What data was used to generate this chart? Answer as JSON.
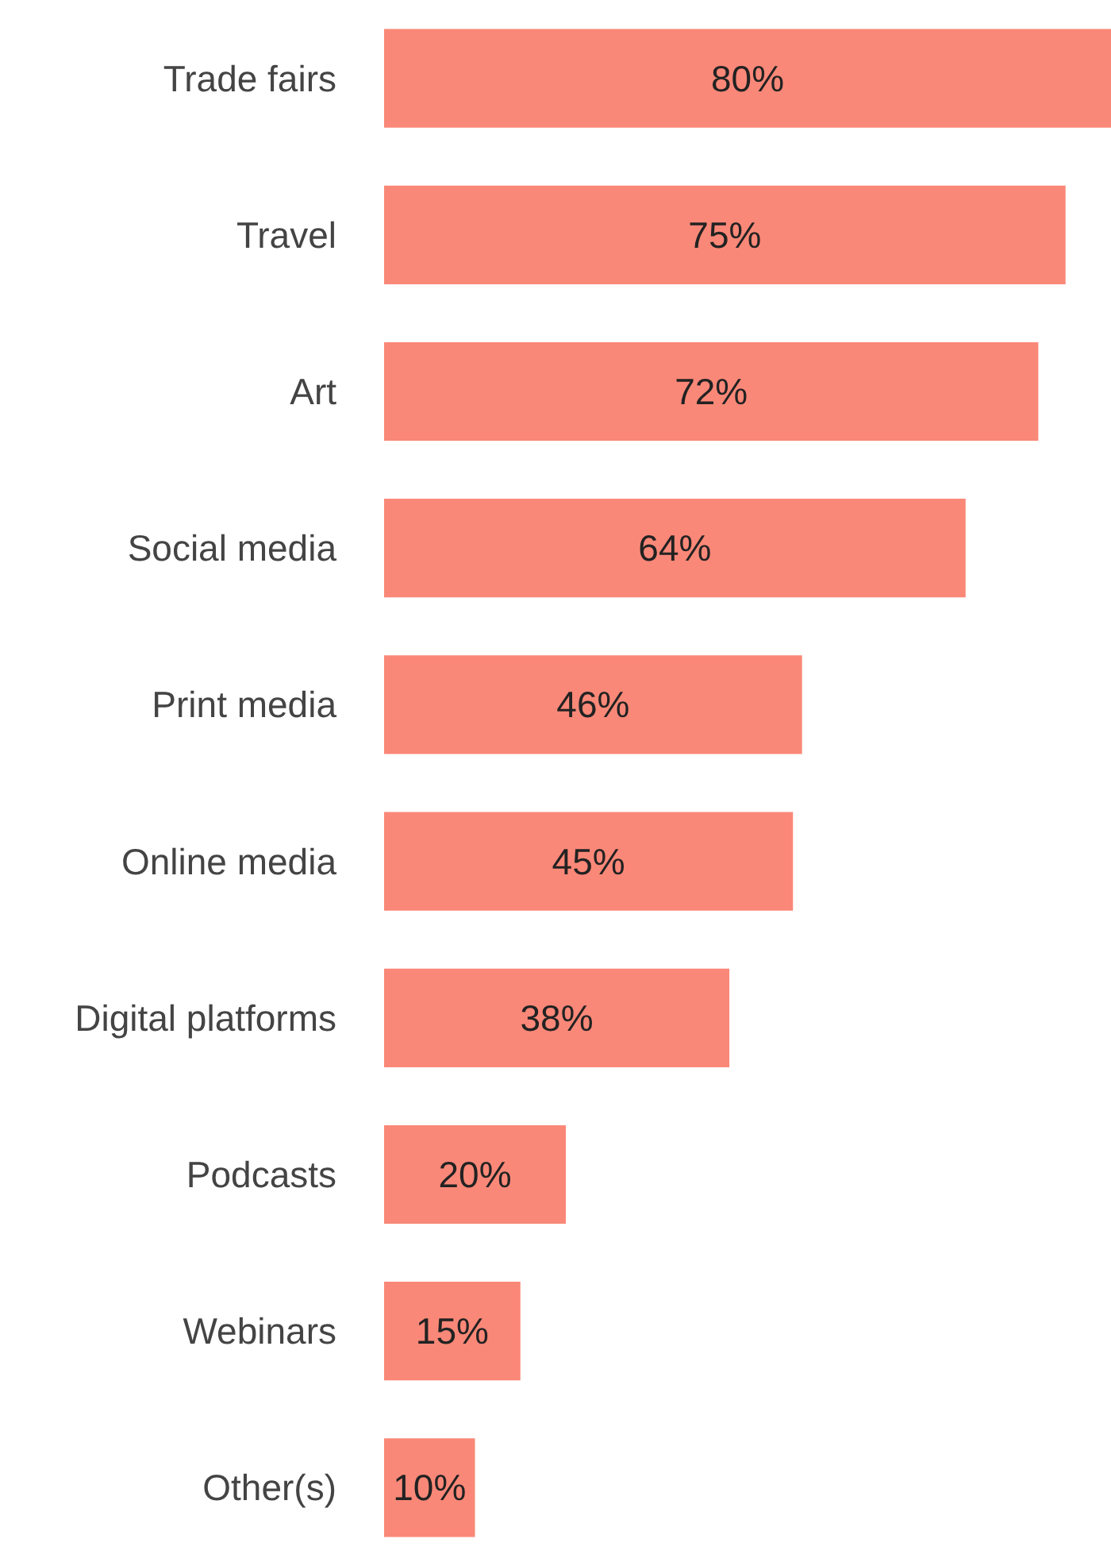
{
  "chart_data": {
    "type": "bar",
    "orientation": "horizontal",
    "categories": [
      "Trade fairs",
      "Travel",
      "Art",
      "Social media",
      "Print media",
      "Online media",
      "Digital platforms",
      "Podcasts",
      "Webinars",
      "Other(s)"
    ],
    "values": [
      80,
      75,
      72,
      64,
      46,
      45,
      38,
      20,
      15,
      10
    ],
    "value_labels": [
      "80%",
      "75%",
      "72%",
      "64%",
      "46%",
      "45%",
      "38%",
      "20%",
      "15%",
      "10%"
    ],
    "color": "#fa8878",
    "xlim": [
      0,
      80
    ]
  }
}
